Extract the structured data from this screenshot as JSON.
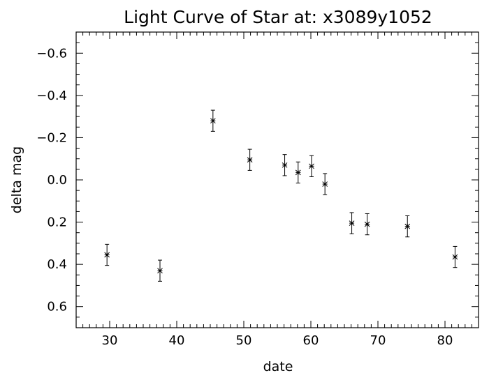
{
  "chart_data": {
    "type": "scatter",
    "title": "Light Curve of Star at: x3089y1052",
    "xlabel": "date",
    "ylabel": "delta mag",
    "xlim": [
      25,
      85
    ],
    "ylim": [
      0.7,
      -0.7
    ],
    "y_axis_inverted": true,
    "grid": false,
    "legend": "none",
    "marker": "asterisk",
    "x_ticks": [
      "30",
      "40",
      "50",
      "60",
      "70",
      "80"
    ],
    "y_ticks": [
      "−0.6",
      "−0.4",
      "−0.2",
      "0.0",
      "0.2",
      "0.4",
      "0.6"
    ],
    "points": [
      {
        "x": 29.6,
        "y": 0.355,
        "err": 0.05
      },
      {
        "x": 37.5,
        "y": 0.43,
        "err": 0.05
      },
      {
        "x": 45.4,
        "y": -0.28,
        "err": 0.05
      },
      {
        "x": 50.9,
        "y": -0.095,
        "err": 0.05
      },
      {
        "x": 56.1,
        "y": -0.07,
        "err": 0.05
      },
      {
        "x": 58.1,
        "y": -0.035,
        "err": 0.05
      },
      {
        "x": 60.1,
        "y": -0.065,
        "err": 0.05
      },
      {
        "x": 62.1,
        "y": 0.02,
        "err": 0.05
      },
      {
        "x": 66.1,
        "y": 0.205,
        "err": 0.05
      },
      {
        "x": 68.4,
        "y": 0.21,
        "err": 0.05
      },
      {
        "x": 74.4,
        "y": 0.22,
        "err": 0.05
      },
      {
        "x": 81.5,
        "y": 0.365,
        "err": 0.05
      }
    ]
  }
}
